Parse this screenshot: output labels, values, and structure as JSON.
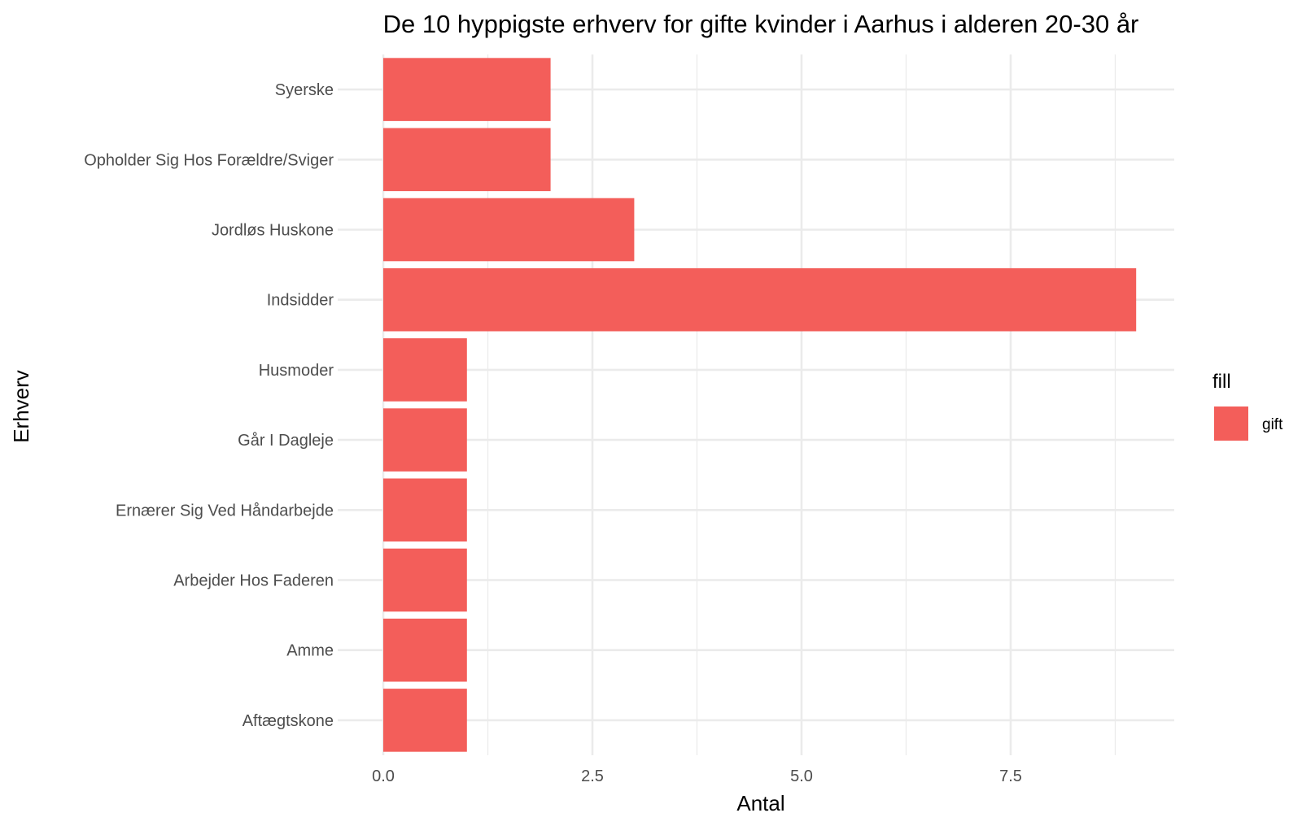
{
  "chart_data": {
    "type": "bar",
    "orientation": "horizontal",
    "title": "De 10 hyppigste erhverv for gifte kvinder i Aarhus i alderen 20-30 år",
    "xlabel": "Antal",
    "ylabel": "Erhverv",
    "categories": [
      "Aftægtskone",
      "Amme",
      "Arbejder Hos Faderen",
      "Ernærer Sig Ved Håndarbejde",
      "Går I Dagleje",
      "Husmoder",
      "Indsidder",
      "Jordløs Huskone",
      "Opholder Sig Hos Forældre/Sviger",
      "Syerske"
    ],
    "series": [
      {
        "name": "gift",
        "color": "#F35E5A",
        "values": [
          1,
          1,
          1,
          1,
          1,
          1,
          9,
          3,
          2,
          2
        ]
      }
    ],
    "xlim": [
      0,
      9.45
    ],
    "xticks": [
      0,
      2.5,
      5,
      7.5
    ],
    "xtick_labels": [
      "0.0",
      "2.5",
      "5.0",
      "7.5"
    ],
    "grid": true,
    "legend": {
      "title": "fill",
      "position": "right"
    }
  }
}
